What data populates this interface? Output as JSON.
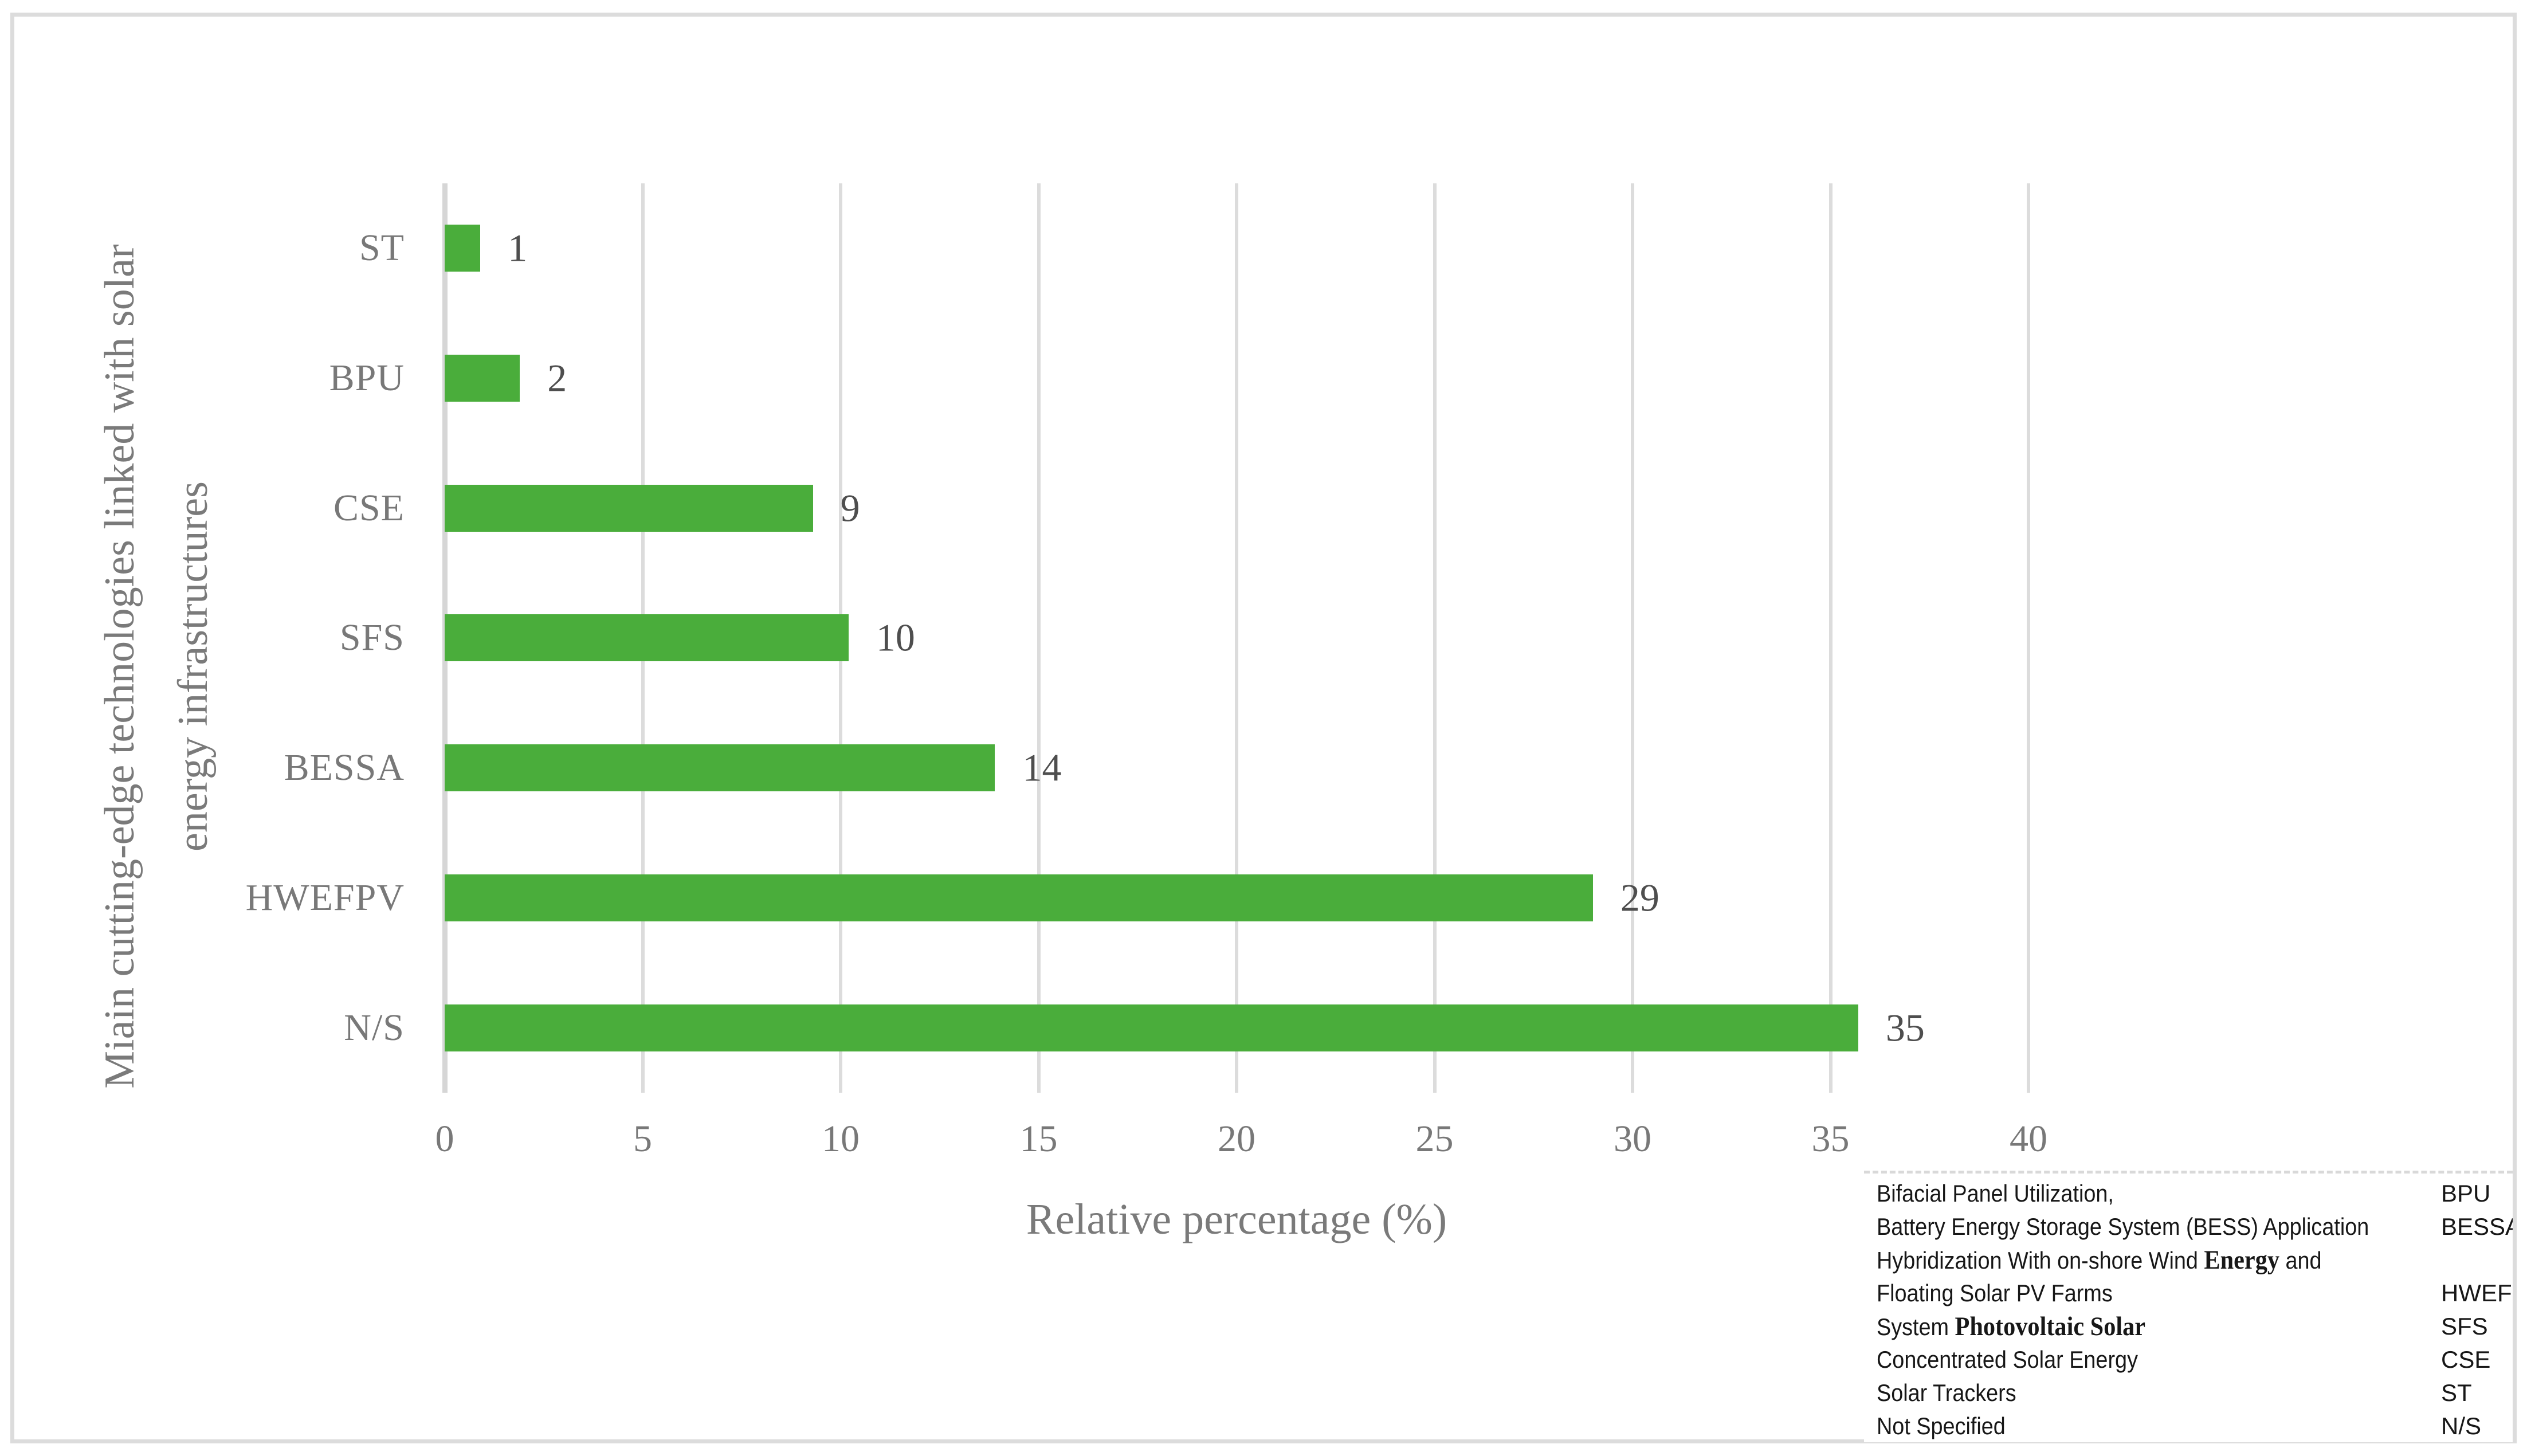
{
  "colors": {
    "bar": "#4aad3b",
    "gridline": "#dcdcdc",
    "zero_axis_line": "#d6d6d6",
    "category_label": "#787878",
    "value_label": "#4e4e4e",
    "tick_label": "#787878",
    "axis_title": "#7a7a7a",
    "legend_text": "#171717",
    "figure_border": "#dcdcdc",
    "background": "#ffffff"
  },
  "chart_data": {
    "type": "bar",
    "orientation": "horizontal",
    "title": "",
    "categories": [
      "ST",
      "BPU",
      "CSE",
      "SFS",
      "BESSA",
      "HWEFPV",
      "N/S"
    ],
    "values": [
      1,
      2,
      9,
      10,
      14,
      29,
      35
    ],
    "data_labels": [
      "1",
      "2",
      "9",
      "10",
      "14",
      "29",
      "35"
    ],
    "bar_visual_values": [
      0.9,
      1.9,
      9.3,
      10.2,
      13.9,
      29.0,
      35.7
    ],
    "xlabel": "Relative percentage (%)",
    "ylabel_line1": "Miain cutting-edge technologies linked with solar",
    "ylabel_line2": "energy infrastructures",
    "ylabel": "Miain cutting-edge technologies linked with solar energy infrastructures",
    "xlim": [
      0,
      40
    ],
    "xticks": [
      "0",
      "5",
      "10",
      "15",
      "20",
      "25",
      "30",
      "35",
      "40"
    ],
    "grid": "vertical gridlines only",
    "legend_position": "bottom-right"
  },
  "legend": {
    "rows": [
      {
        "pre": "Bifacial Panel Utilization,",
        "serif": "",
        "post": "",
        "abbr": "BPU"
      },
      {
        "pre": "Battery Energy Storage System (BESS) Application",
        "serif": "",
        "post": "",
        "abbr": "BESSA"
      },
      {
        "pre": "Hybridization With on-shore Wind ",
        "serif": "Energy",
        "post": " and",
        "abbr": ""
      },
      {
        "pre": "Floating Solar PV Farms",
        "serif": "",
        "post": "",
        "abbr": "HWEFPV"
      },
      {
        "pre": "System ",
        "serif": "Photovoltaic Solar",
        "post": "",
        "abbr": "SFS"
      },
      {
        "pre": "Concentrated Solar Energy",
        "serif": "",
        "post": "",
        "abbr": "CSE"
      },
      {
        "pre": "Solar Trackers",
        "serif": "",
        "post": "",
        "abbr": "ST"
      },
      {
        "pre": "Not Specified",
        "serif": "",
        "post": "",
        "abbr": "N/S"
      }
    ]
  }
}
